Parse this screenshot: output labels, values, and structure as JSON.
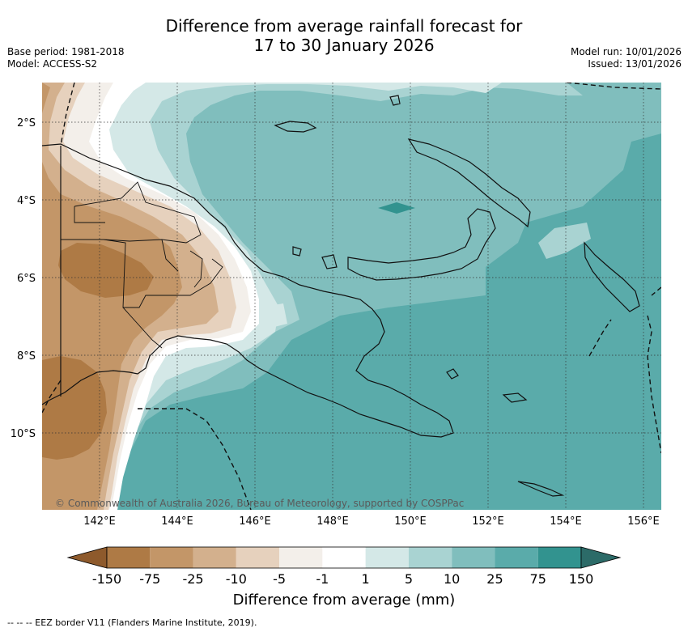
{
  "title": {
    "line1": "Difference from average rainfall forecast for",
    "line2": "17 to 30 January 2026"
  },
  "meta_left": {
    "base_period": "Base period: 1981-2018",
    "model": "Model: ACCESS-S2"
  },
  "meta_right": {
    "model_run": "Model run: 10/01/2026",
    "issued": "Issued: 13/01/2026"
  },
  "map": {
    "lon_labels": [
      "142°E",
      "144°E",
      "146°E",
      "148°E",
      "150°E",
      "152°E",
      "154°E",
      "156°E"
    ],
    "lat_labels": [
      "2°S",
      "4°S",
      "6°S",
      "8°S",
      "10°S"
    ],
    "copyright": "© Commonwealth of Australia 2026, Bureau of Meteorology, supported by COSPPac"
  },
  "colorbar": {
    "title": "Difference from average (mm)",
    "tick_labels": [
      "-150",
      "-75",
      "-25",
      "-10",
      "-5",
      "-1",
      "1",
      "5",
      "10",
      "25",
      "75",
      "150"
    ],
    "colors": [
      "#8e5a2c",
      "#ae7a45",
      "#c39668",
      "#d3b08d",
      "#e6d1bd",
      "#f3efea",
      "#ffffff",
      "#d4e8e7",
      "#a9d3d2",
      "#80bebd",
      "#5aabaa",
      "#32938f",
      "#2c6b68"
    ]
  },
  "footer": {
    "eez_note": "--  --  -- EEZ border V11 (Flanders Marine Institute, 2019)."
  }
}
